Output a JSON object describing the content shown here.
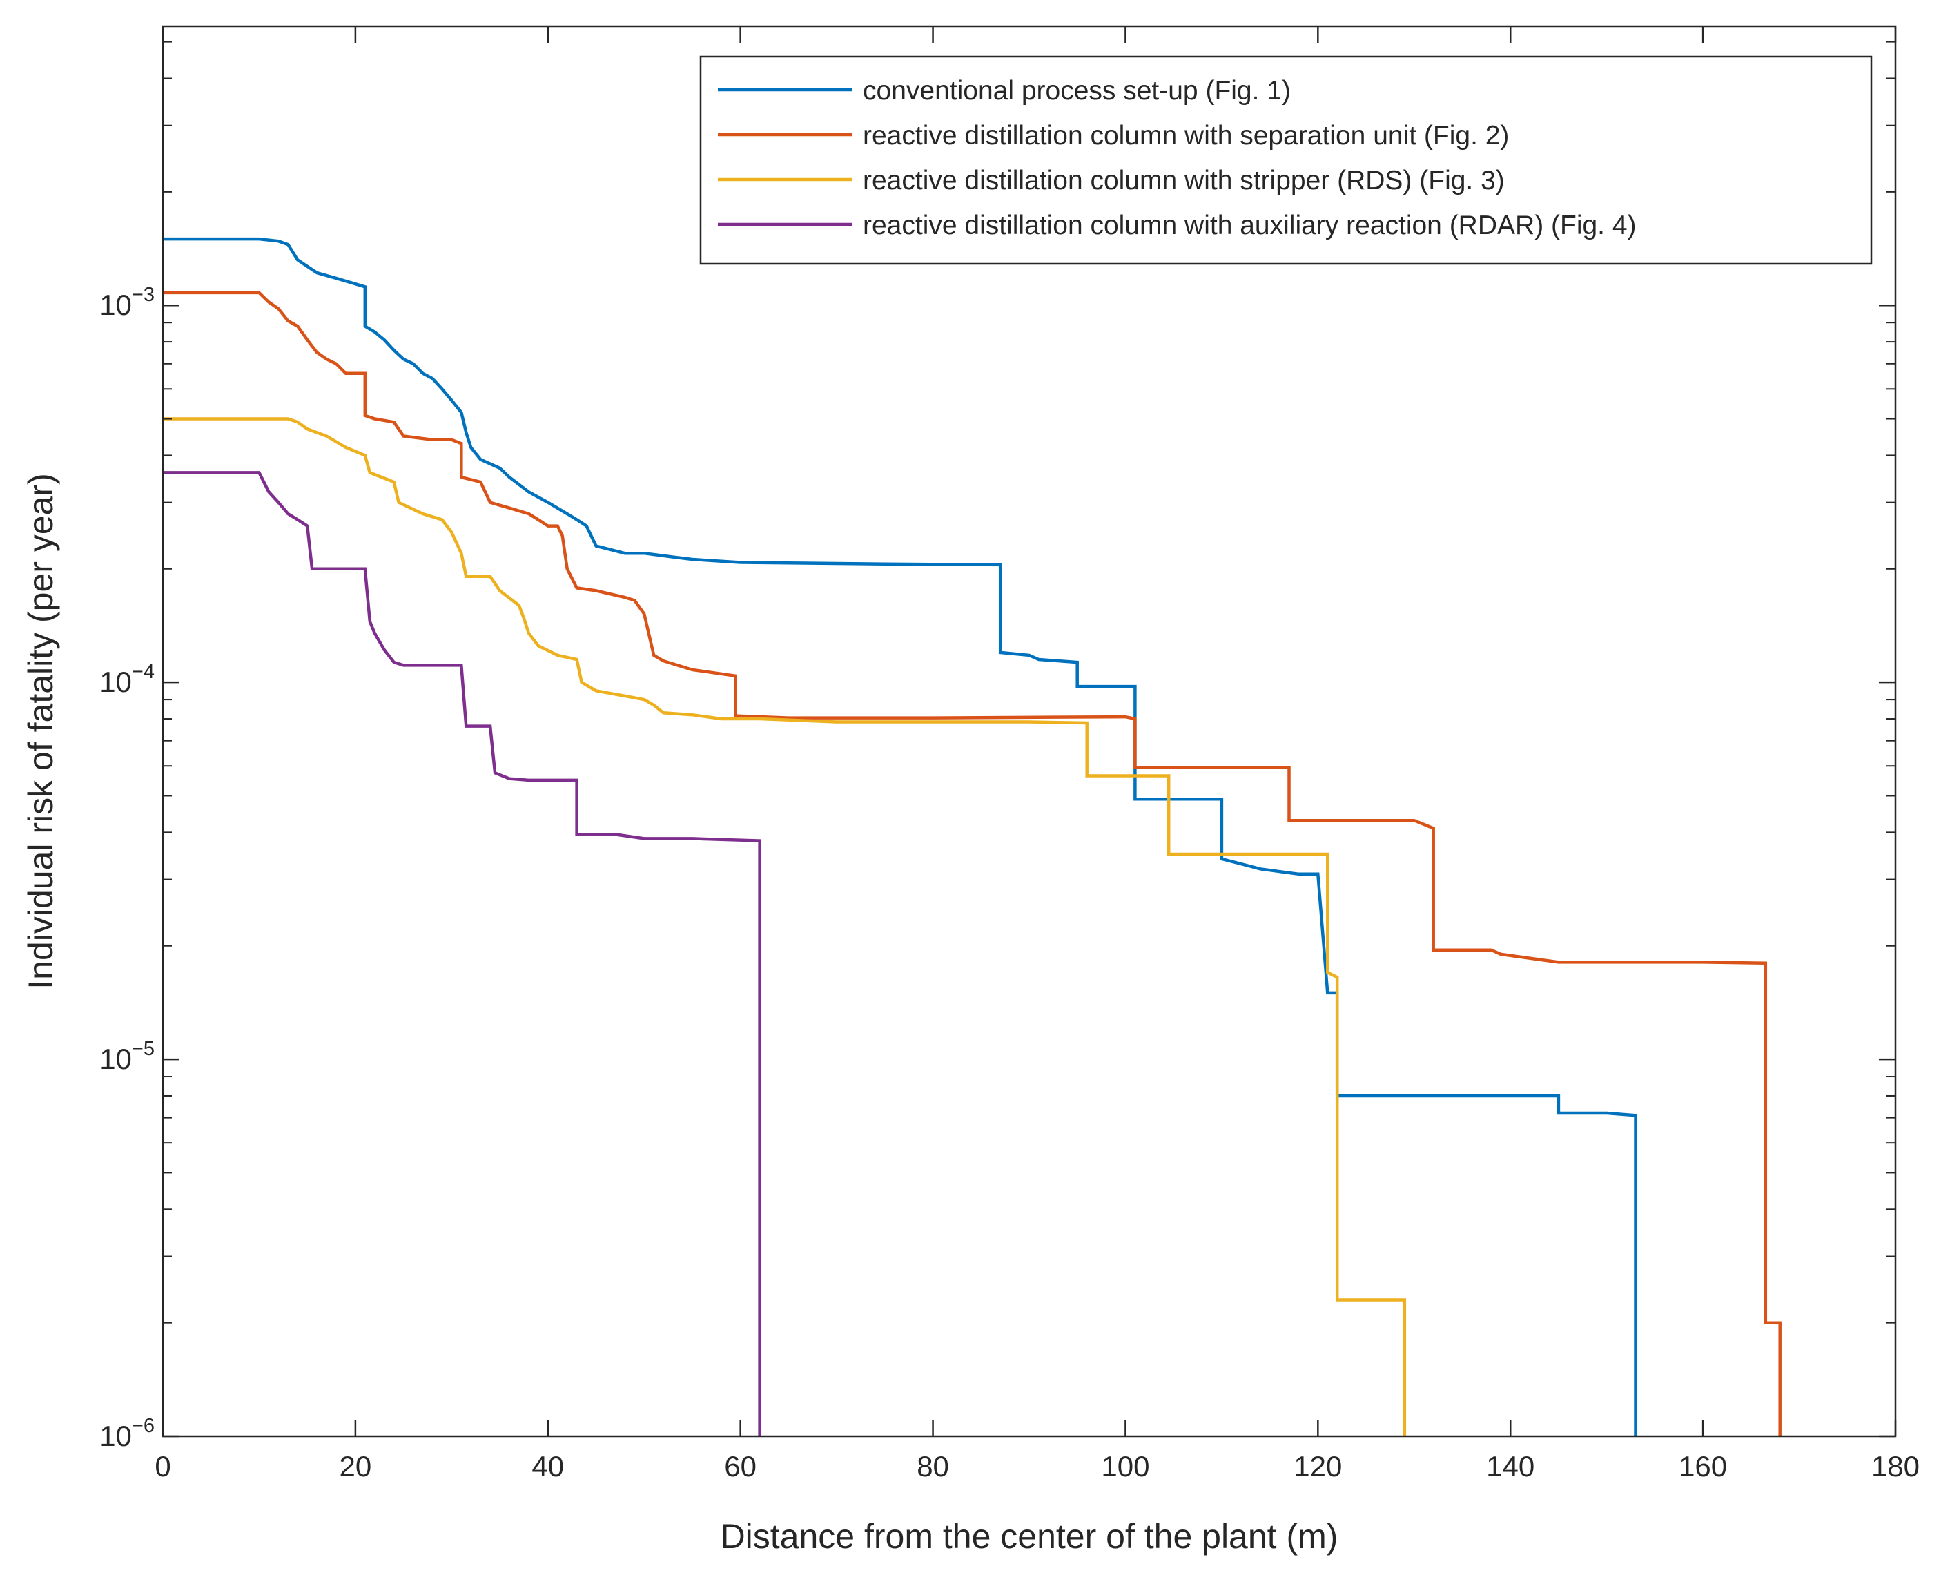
{
  "chart_data": {
    "type": "line",
    "title": "",
    "xlabel": "Distance from the center of the plant (m)",
    "ylabel": "Individual risk of fatality (per year)",
    "xlim": [
      0,
      180
    ],
    "ylim": [
      1e-06,
      0.0055
    ],
    "yscale": "log",
    "grid": false,
    "legend_position": "top-right",
    "x_ticks": [
      {
        "value": 0,
        "label": "0"
      },
      {
        "value": 20,
        "label": "20"
      },
      {
        "value": 40,
        "label": "40"
      },
      {
        "value": 60,
        "label": "60"
      },
      {
        "value": 80,
        "label": "80"
      },
      {
        "value": 100,
        "label": "100"
      },
      {
        "value": 120,
        "label": "120"
      },
      {
        "value": 140,
        "label": "140"
      },
      {
        "value": 160,
        "label": "160"
      },
      {
        "value": 180,
        "label": "180"
      }
    ],
    "y_ticks": [
      {
        "value": 0.001,
        "base": "10",
        "exp": "−3"
      },
      {
        "value": 0.0001,
        "base": "10",
        "exp": "−4"
      },
      {
        "value": 1e-05,
        "base": "10",
        "exp": "−5"
      },
      {
        "value": 1e-06,
        "base": "10",
        "exp": "−6"
      }
    ],
    "series": [
      {
        "name": "conventional process set-up (Fig. 1)",
        "color": "#0072BD",
        "x": [
          0,
          10,
          12,
          13,
          14,
          16,
          18,
          21,
          21,
          22,
          23,
          24,
          25,
          26,
          27,
          28,
          29,
          30,
          31,
          31.5,
          32,
          33,
          35,
          36,
          38,
          40,
          42,
          43,
          44,
          45,
          48,
          50,
          53,
          55,
          60,
          75,
          87,
          87,
          90,
          91,
          95,
          95,
          97,
          101,
          101,
          103,
          105,
          110,
          110,
          112,
          114,
          118,
          120,
          121,
          122,
          122,
          135,
          145,
          145,
          150,
          153,
          153
        ],
        "y": [
          0.0015,
          0.0015,
          0.00148,
          0.00145,
          0.00132,
          0.00122,
          0.00118,
          0.00112,
          0.00088,
          0.00085,
          0.00081,
          0.00076,
          0.00072,
          0.0007,
          0.00066,
          0.00064,
          0.0006,
          0.00056,
          0.00052,
          0.00046,
          0.00042,
          0.00039,
          0.00037,
          0.00035,
          0.00032,
          0.0003,
          0.00028,
          0.00027,
          0.00026,
          0.00023,
          0.00022,
          0.00022,
          0.000215,
          0.000212,
          0.000208,
          0.000206,
          0.000205,
          0.00012,
          0.000118,
          0.000115,
          0.000113,
          9.75e-05,
          9.75e-05,
          9.75e-05,
          4.9e-05,
          4.9e-05,
          4.9e-05,
          4.9e-05,
          3.4e-05,
          3.3e-05,
          3.2e-05,
          3.1e-05,
          3.1e-05,
          1.5e-05,
          1.5e-05,
          8e-06,
          8e-06,
          8e-06,
          7.2e-06,
          7.2e-06,
          7.1e-06,
          1e-06
        ]
      },
      {
        "name": "reactive distillation column with separation unit (Fig. 2)",
        "color": "#D95319",
        "x": [
          0,
          10,
          11,
          12,
          13,
          14,
          15,
          16,
          17,
          18,
          19,
          21,
          21,
          22,
          24,
          25,
          28,
          30,
          31,
          31,
          33,
          34,
          36,
          38,
          39,
          40,
          41,
          41.5,
          42,
          43,
          45,
          48,
          49,
          50,
          51,
          52,
          55,
          59.5,
          59.5,
          65,
          80,
          100,
          101,
          101,
          110,
          117,
          117,
          125,
          130,
          131,
          132,
          132,
          138,
          139,
          145,
          160,
          166.5,
          166.5,
          168,
          168
        ],
        "y": [
          0.00108,
          0.00108,
          0.00102,
          0.00098,
          0.00091,
          0.00088,
          0.00081,
          0.00075,
          0.00072,
          0.0007,
          0.00066,
          0.00066,
          0.00051,
          0.0005,
          0.00049,
          0.00045,
          0.00044,
          0.00044,
          0.00043,
          0.00035,
          0.00034,
          0.0003,
          0.00029,
          0.00028,
          0.00027,
          0.00026,
          0.00026,
          0.000245,
          0.0002,
          0.000178,
          0.000175,
          0.000168,
          0.000165,
          0.000152,
          0.000118,
          0.000114,
          0.000108,
          0.000104,
          8.15e-05,
          8.05e-05,
          8.05e-05,
          8.1e-05,
          8e-05,
          5.95e-05,
          5.95e-05,
          5.95e-05,
          4.3e-05,
          4.3e-05,
          4.3e-05,
          4.2e-05,
          4.1e-05,
          1.95e-05,
          1.95e-05,
          1.9e-05,
          1.81e-05,
          1.81e-05,
          1.8e-05,
          2e-06,
          2e-06,
          1e-06
        ]
      },
      {
        "name": "reactive distillation column with stripper (RDS) (Fig. 3)",
        "color": "#EDB120",
        "x": [
          0,
          13,
          14,
          15,
          17,
          19,
          21,
          21.5,
          24,
          24.5,
          27,
          29,
          30,
          31,
          31.5,
          34,
          35,
          37,
          37.5,
          38,
          39,
          41,
          43,
          43.5,
          45,
          48,
          50,
          51,
          52,
          55,
          58,
          62,
          70,
          80,
          90,
          96,
          96,
          100,
          101,
          104.5,
          104.5,
          115,
          121,
          121,
          122,
          122,
          122,
          129,
          129
        ],
        "y": [
          0.0005,
          0.0005,
          0.00049,
          0.00047,
          0.00045,
          0.00042,
          0.0004,
          0.00036,
          0.00034,
          0.0003,
          0.00028,
          0.00027,
          0.00025,
          0.00022,
          0.000191,
          0.000191,
          0.000175,
          0.00016,
          0.000148,
          0.000135,
          0.000125,
          0.000118,
          0.000115,
          0.0001,
          9.5e-05,
          9.2e-05,
          9e-05,
          8.7e-05,
          8.3e-05,
          8.2e-05,
          8e-05,
          8e-05,
          7.85e-05,
          7.85e-05,
          7.85e-05,
          7.8e-05,
          5.65e-05,
          5.65e-05,
          5.65e-05,
          5.65e-05,
          3.5e-05,
          3.5e-05,
          3.5e-05,
          1.7e-05,
          1.65e-05,
          2.3e-06,
          2.3e-06,
          2.3e-06,
          1e-06
        ]
      },
      {
        "name": "reactive distillation column with auxiliary reaction (RDAR) (Fig. 4)",
        "color": "#7E2F8E",
        "x": [
          0,
          10,
          11,
          12,
          13,
          14,
          15,
          15.5,
          18,
          21,
          21.5,
          22,
          23,
          24,
          25,
          28,
          31,
          31.5,
          34,
          34.5,
          36,
          38,
          43,
          43,
          47,
          50,
          55,
          62,
          62
        ],
        "y": [
          0.00036,
          0.00036,
          0.00032,
          0.0003,
          0.00028,
          0.00027,
          0.00026,
          0.0002,
          0.0002,
          0.0002,
          0.000145,
          0.000135,
          0.000122,
          0.000113,
          0.000111,
          0.000111,
          0.000111,
          7.65e-05,
          7.65e-05,
          5.75e-05,
          5.55e-05,
          5.5e-05,
          5.5e-05,
          3.95e-05,
          3.95e-05,
          3.85e-05,
          3.85e-05,
          3.8e-05,
          1e-06
        ]
      }
    ]
  }
}
